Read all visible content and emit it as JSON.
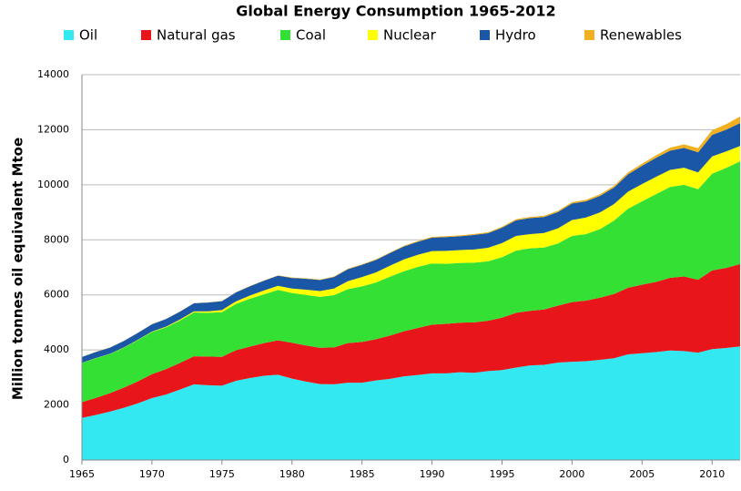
{
  "chart_data": {
    "type": "stacked-area",
    "title": "Global Energy Consumption 1965-2012",
    "y_label": "Million tonnes oil equivalent Mtoe",
    "x": [
      1965,
      1966,
      1967,
      1968,
      1969,
      1970,
      1971,
      1972,
      1973,
      1974,
      1975,
      1976,
      1977,
      1978,
      1979,
      1980,
      1981,
      1982,
      1983,
      1984,
      1985,
      1986,
      1987,
      1988,
      1989,
      1990,
      1991,
      1992,
      1993,
      1994,
      1995,
      1996,
      1997,
      1998,
      1999,
      2000,
      2001,
      2002,
      2003,
      2004,
      2005,
      2006,
      2007,
      2008,
      2009,
      2010,
      2011,
      2012
    ],
    "series": [
      {
        "name": "Oil",
        "color": "#33e8f0",
        "values": [
          1530,
          1640,
          1760,
          1900,
          2060,
          2250,
          2380,
          2560,
          2750,
          2720,
          2700,
          2880,
          2980,
          3060,
          3100,
          2960,
          2850,
          2760,
          2750,
          2810,
          2810,
          2890,
          2950,
          3040,
          3090,
          3150,
          3150,
          3190,
          3170,
          3230,
          3270,
          3360,
          3440,
          3460,
          3540,
          3570,
          3590,
          3640,
          3700,
          3840,
          3880,
          3920,
          3980,
          3960,
          3900,
          4030,
          4070,
          4130
        ]
      },
      {
        "name": "Natural gas",
        "color": "#e8161b",
        "values": [
          570,
          620,
          670,
          730,
          800,
          870,
          920,
          970,
          1020,
          1040,
          1050,
          1110,
          1140,
          1190,
          1250,
          1300,
          1310,
          1320,
          1340,
          1440,
          1480,
          1500,
          1570,
          1640,
          1710,
          1770,
          1800,
          1800,
          1830,
          1830,
          1900,
          1990,
          1980,
          2010,
          2070,
          2170,
          2200,
          2260,
          2330,
          2420,
          2490,
          2550,
          2640,
          2710,
          2650,
          2860,
          2910,
          2990
        ]
      },
      {
        "name": "Coal",
        "color": "#33e033",
        "values": [
          1430,
          1440,
          1420,
          1450,
          1500,
          1530,
          1520,
          1540,
          1590,
          1590,
          1620,
          1680,
          1740,
          1770,
          1830,
          1810,
          1840,
          1850,
          1900,
          1960,
          2020,
          2060,
          2140,
          2180,
          2220,
          2220,
          2180,
          2170,
          2170,
          2160,
          2200,
          2260,
          2270,
          2250,
          2260,
          2400,
          2420,
          2490,
          2670,
          2870,
          3030,
          3190,
          3300,
          3330,
          3290,
          3510,
          3630,
          3730
        ]
      },
      {
        "name": "Nuclear",
        "color": "#ffff00",
        "values": [
          5,
          8,
          10,
          12,
          15,
          18,
          25,
          35,
          45,
          55,
          80,
          95,
          120,
          140,
          150,
          160,
          190,
          210,
          240,
          290,
          340,
          370,
          400,
          430,
          440,
          450,
          470,
          470,
          480,
          490,
          510,
          530,
          520,
          530,
          550,
          580,
          600,
          610,
          600,
          620,
          630,
          630,
          620,
          620,
          610,
          630,
          600,
          560
        ]
      },
      {
        "name": "Hydro",
        "color": "#1a57a6",
        "values": [
          210,
          220,
          225,
          235,
          245,
          265,
          275,
          285,
          290,
          315,
          320,
          325,
          335,
          355,
          370,
          385,
          395,
          400,
          420,
          435,
          440,
          450,
          460,
          470,
          470,
          490,
          500,
          500,
          530,
          530,
          560,
          570,
          580,
          580,
          590,
          600,
          590,
          600,
          600,
          630,
          660,
          690,
          700,
          720,
          730,
          780,
          790,
          830
        ]
      },
      {
        "name": "Renewables",
        "color": "#f0b020",
        "values": [
          5,
          5,
          5,
          6,
          6,
          7,
          7,
          8,
          8,
          9,
          9,
          10,
          10,
          11,
          12,
          15,
          16,
          17,
          18,
          19,
          20,
          22,
          24,
          26,
          28,
          30,
          32,
          33,
          34,
          36,
          38,
          40,
          42,
          44,
          46,
          50,
          54,
          58,
          62,
          70,
          80,
          92,
          108,
          130,
          150,
          170,
          200,
          240
        ]
      }
    ],
    "xlim": [
      1965,
      2012
    ],
    "xticks": [
      1965,
      1970,
      1975,
      1980,
      1985,
      1990,
      1995,
      2000,
      2005,
      2010
    ],
    "ylim": [
      0,
      14000
    ],
    "yticks": [
      0,
      2000,
      4000,
      6000,
      8000,
      10000,
      12000,
      14000
    ],
    "grid": true
  }
}
